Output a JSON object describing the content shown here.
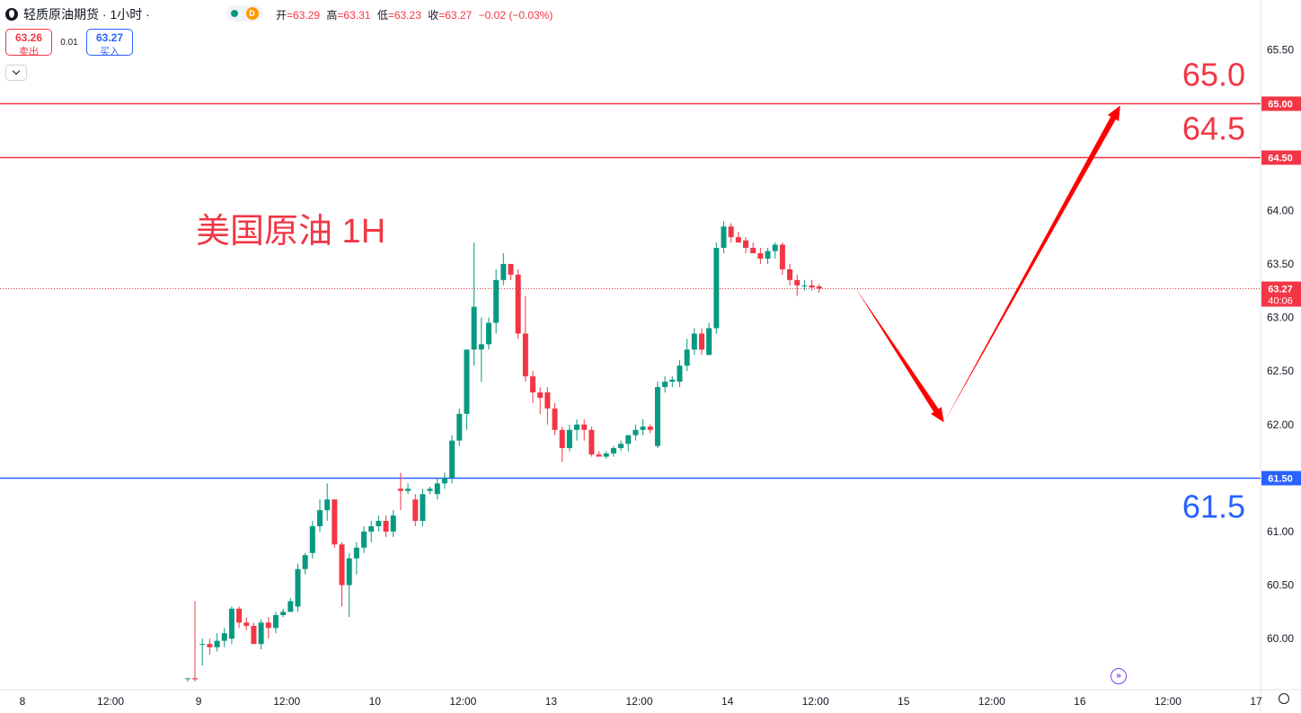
{
  "header": {
    "title": "轻质原油期货 · 1小时 ·",
    "status_letter": "D",
    "ohlc": [
      {
        "label": "开",
        "value": "=63.29"
      },
      {
        "label": "高",
        "value": "=63.31"
      },
      {
        "label": "低",
        "value": "=63.23"
      },
      {
        "label": "收",
        "value": "=63.27"
      }
    ],
    "change": "−0.02 (−0.03%)"
  },
  "trade": {
    "sell_price": "63.26",
    "sell_label": "卖出",
    "spread": "0.01",
    "buy_price": "63.27",
    "buy_label": "买入"
  },
  "colors": {
    "up": "#089981",
    "down": "#f23645",
    "support": "#2962ff",
    "resistance": "#f23645",
    "arrow": "#ff0000"
  },
  "chart_data": {
    "type": "candlestick",
    "annotation_title": "美国原油 1H",
    "y_axis": {
      "ylim": [
        59.6,
        65.7
      ],
      "ticks": [
        "60.00",
        "60.50",
        "61.00",
        "61.50",
        "62.00",
        "62.50",
        "63.00",
        "63.50",
        "64.00",
        "64.50",
        "65.00",
        "65.50"
      ]
    },
    "x_axis": {
      "labels": [
        {
          "label": "8",
          "t": 0
        },
        {
          "label": "12:00",
          "t": 12
        },
        {
          "label": "9",
          "t": 24
        },
        {
          "label": "12:00",
          "t": 36
        },
        {
          "label": "10",
          "t": 48
        },
        {
          "label": "12:00",
          "t": 60
        },
        {
          "label": "13",
          "t": 72
        },
        {
          "label": "12:00",
          "t": 84
        },
        {
          "label": "14",
          "t": 96
        },
        {
          "label": "12:00",
          "t": 108
        },
        {
          "label": "15",
          "t": 120
        },
        {
          "label": "12:00",
          "t": 132
        },
        {
          "label": "16",
          "t": 144
        },
        {
          "label": "12:00",
          "t": 156
        },
        {
          "label": "17",
          "t": 168
        }
      ],
      "range": [
        -3,
        172
      ]
    },
    "levels": [
      {
        "name": "resistance-65",
        "price": 65.0,
        "axis_label": "65.00",
        "text": "65.0",
        "color": "#f23645"
      },
      {
        "name": "resistance-645",
        "price": 64.5,
        "axis_label": "64.50",
        "text": "64.5",
        "color": "#f23645"
      },
      {
        "name": "support-615",
        "price": 61.5,
        "axis_label": "61.50",
        "text": "61.5",
        "color": "#2962ff"
      }
    ],
    "last_price": {
      "price": 63.27,
      "label": "63.27",
      "countdown": "40:06"
    },
    "forecast_path": [
      {
        "t": 113.5,
        "price": 63.27
      },
      {
        "t": 125.5,
        "price": 62.02
      },
      {
        "t": 149.5,
        "price": 64.98
      }
    ],
    "candles": [
      [
        22.5,
        59.63,
        59.63,
        59.6,
        59.63
      ],
      [
        23.5,
        59.63,
        60.35,
        59.6,
        59.62
      ],
      [
        24.5,
        59.95,
        60.0,
        59.75,
        59.95
      ],
      [
        25.5,
        59.95,
        60.0,
        59.85,
        59.92
      ],
      [
        26.5,
        59.92,
        60.05,
        59.88,
        59.98
      ],
      [
        27.5,
        59.98,
        60.1,
        59.92,
        60.05
      ],
      [
        28.5,
        60.0,
        60.3,
        59.95,
        60.28
      ],
      [
        29.5,
        60.28,
        60.3,
        60.1,
        60.15
      ],
      [
        30.5,
        60.15,
        60.2,
        60.08,
        60.12
      ],
      [
        31.5,
        60.12,
        60.15,
        59.95,
        59.95
      ],
      [
        32.5,
        59.95,
        60.18,
        59.9,
        60.15
      ],
      [
        33.5,
        60.15,
        60.2,
        60.0,
        60.1
      ],
      [
        34.5,
        60.1,
        60.25,
        60.05,
        60.22
      ],
      [
        35.5,
        60.22,
        60.28,
        60.2,
        60.25
      ],
      [
        36.5,
        60.25,
        60.38,
        60.25,
        60.35
      ],
      [
        37.5,
        60.3,
        60.7,
        60.25,
        60.65
      ],
      [
        38.5,
        60.65,
        60.8,
        60.6,
        60.78
      ],
      [
        39.5,
        60.8,
        61.1,
        60.75,
        61.05
      ],
      [
        40.5,
        61.05,
        61.3,
        61.0,
        61.2
      ],
      [
        41.5,
        61.2,
        61.45,
        61.1,
        61.3
      ],
      [
        42.5,
        61.3,
        61.3,
        60.85,
        60.88
      ],
      [
        43.5,
        60.88,
        60.9,
        60.3,
        60.5
      ],
      [
        44.5,
        60.5,
        60.8,
        60.2,
        60.75
      ],
      [
        45.5,
        60.75,
        60.9,
        60.6,
        60.85
      ],
      [
        46.5,
        60.85,
        61.05,
        60.8,
        61.0
      ],
      [
        47.5,
        61.0,
        61.1,
        60.9,
        61.05
      ],
      [
        48.5,
        61.05,
        61.15,
        61.0,
        61.1
      ],
      [
        49.5,
        61.1,
        61.15,
        60.95,
        61.0
      ],
      [
        50.5,
        61.0,
        61.2,
        60.95,
        61.15
      ],
      [
        51.5,
        61.4,
        61.55,
        61.2,
        61.38
      ],
      [
        52.5,
        61.38,
        61.45,
        61.35,
        61.4
      ],
      [
        53.5,
        61.3,
        61.35,
        61.05,
        61.1
      ],
      [
        54.5,
        61.1,
        61.4,
        61.05,
        61.35
      ],
      [
        55.5,
        61.38,
        61.42,
        61.35,
        61.4
      ],
      [
        56.5,
        61.35,
        61.5,
        61.3,
        61.45
      ],
      [
        57.5,
        61.45,
        61.55,
        61.4,
        61.5
      ],
      [
        58.5,
        61.5,
        61.9,
        61.45,
        61.85
      ],
      [
        59.5,
        61.85,
        62.15,
        61.8,
        62.1
      ],
      [
        60.5,
        62.1,
        62.7,
        61.95,
        62.7
      ],
      [
        61.5,
        62.7,
        63.7,
        62.55,
        63.1
      ],
      [
        62.5,
        62.7,
        63.0,
        62.4,
        62.75
      ],
      [
        63.5,
        62.75,
        63.0,
        62.7,
        62.95
      ],
      [
        64.5,
        62.95,
        63.45,
        62.85,
        63.35
      ],
      [
        65.5,
        63.35,
        63.6,
        63.3,
        63.5
      ],
      [
        66.5,
        63.5,
        63.5,
        63.35,
        63.4
      ],
      [
        67.5,
        63.4,
        63.45,
        62.8,
        62.85
      ],
      [
        68.5,
        62.85,
        63.2,
        62.4,
        62.45
      ],
      [
        69.5,
        62.45,
        62.5,
        62.2,
        62.3
      ],
      [
        70.5,
        62.3,
        62.35,
        62.1,
        62.25
      ],
      [
        71.5,
        62.3,
        62.35,
        62.0,
        62.15
      ],
      [
        72.5,
        62.15,
        62.2,
        61.9,
        61.95
      ],
      [
        73.5,
        61.95,
        61.98,
        61.65,
        61.78
      ],
      [
        74.5,
        61.78,
        62.0,
        61.75,
        61.95
      ],
      [
        75.5,
        61.95,
        62.05,
        61.85,
        62.0
      ],
      [
        76.5,
        62.0,
        62.05,
        61.85,
        61.95
      ],
      [
        77.5,
        61.95,
        61.98,
        61.7,
        61.72
      ],
      [
        78.5,
        61.72,
        61.75,
        61.7,
        61.7
      ],
      [
        79.5,
        61.7,
        61.75,
        61.68,
        61.73
      ],
      [
        80.5,
        61.73,
        61.8,
        61.7,
        61.78
      ],
      [
        81.5,
        61.78,
        61.85,
        61.75,
        61.82
      ],
      [
        82.5,
        61.82,
        61.9,
        61.75,
        61.9
      ],
      [
        83.5,
        61.9,
        62.0,
        61.85,
        61.95
      ],
      [
        84.5,
        61.95,
        62.05,
        61.9,
        61.98
      ],
      [
        85.5,
        61.98,
        62.0,
        61.92,
        61.95
      ],
      [
        86.5,
        61.8,
        62.4,
        61.78,
        62.35
      ],
      [
        87.5,
        62.35,
        62.45,
        62.3,
        62.4
      ],
      [
        88.5,
        62.4,
        62.45,
        62.35,
        62.42
      ],
      [
        89.5,
        62.4,
        62.6,
        62.35,
        62.55
      ],
      [
        90.5,
        62.55,
        62.8,
        62.5,
        62.7
      ],
      [
        91.5,
        62.7,
        62.9,
        62.65,
        62.85
      ],
      [
        92.5,
        62.85,
        62.9,
        62.65,
        62.7
      ],
      [
        93.5,
        62.65,
        62.95,
        62.65,
        62.9
      ],
      [
        94.5,
        62.9,
        63.7,
        62.85,
        63.65
      ],
      [
        95.5,
        63.65,
        63.9,
        63.6,
        63.85
      ],
      [
        96.5,
        63.85,
        63.88,
        63.7,
        63.75
      ],
      [
        97.5,
        63.75,
        63.8,
        63.7,
        63.7
      ],
      [
        98.5,
        63.72,
        63.75,
        63.6,
        63.65
      ],
      [
        99.5,
        63.65,
        63.7,
        63.6,
        63.6
      ],
      [
        100.5,
        63.6,
        63.65,
        63.5,
        63.55
      ],
      [
        101.5,
        63.55,
        63.65,
        63.5,
        63.62
      ],
      [
        102.5,
        63.62,
        63.7,
        63.55,
        63.68
      ],
      [
        103.5,
        63.68,
        63.7,
        63.4,
        63.45
      ],
      [
        104.5,
        63.45,
        63.5,
        63.3,
        63.35
      ],
      [
        105.5,
        63.35,
        63.4,
        63.2,
        63.3
      ],
      [
        106.5,
        63.3,
        63.35,
        63.25,
        63.3
      ],
      [
        107.5,
        63.3,
        63.35,
        63.25,
        63.28
      ],
      [
        108.5,
        63.29,
        63.31,
        63.23,
        63.27
      ]
    ]
  }
}
